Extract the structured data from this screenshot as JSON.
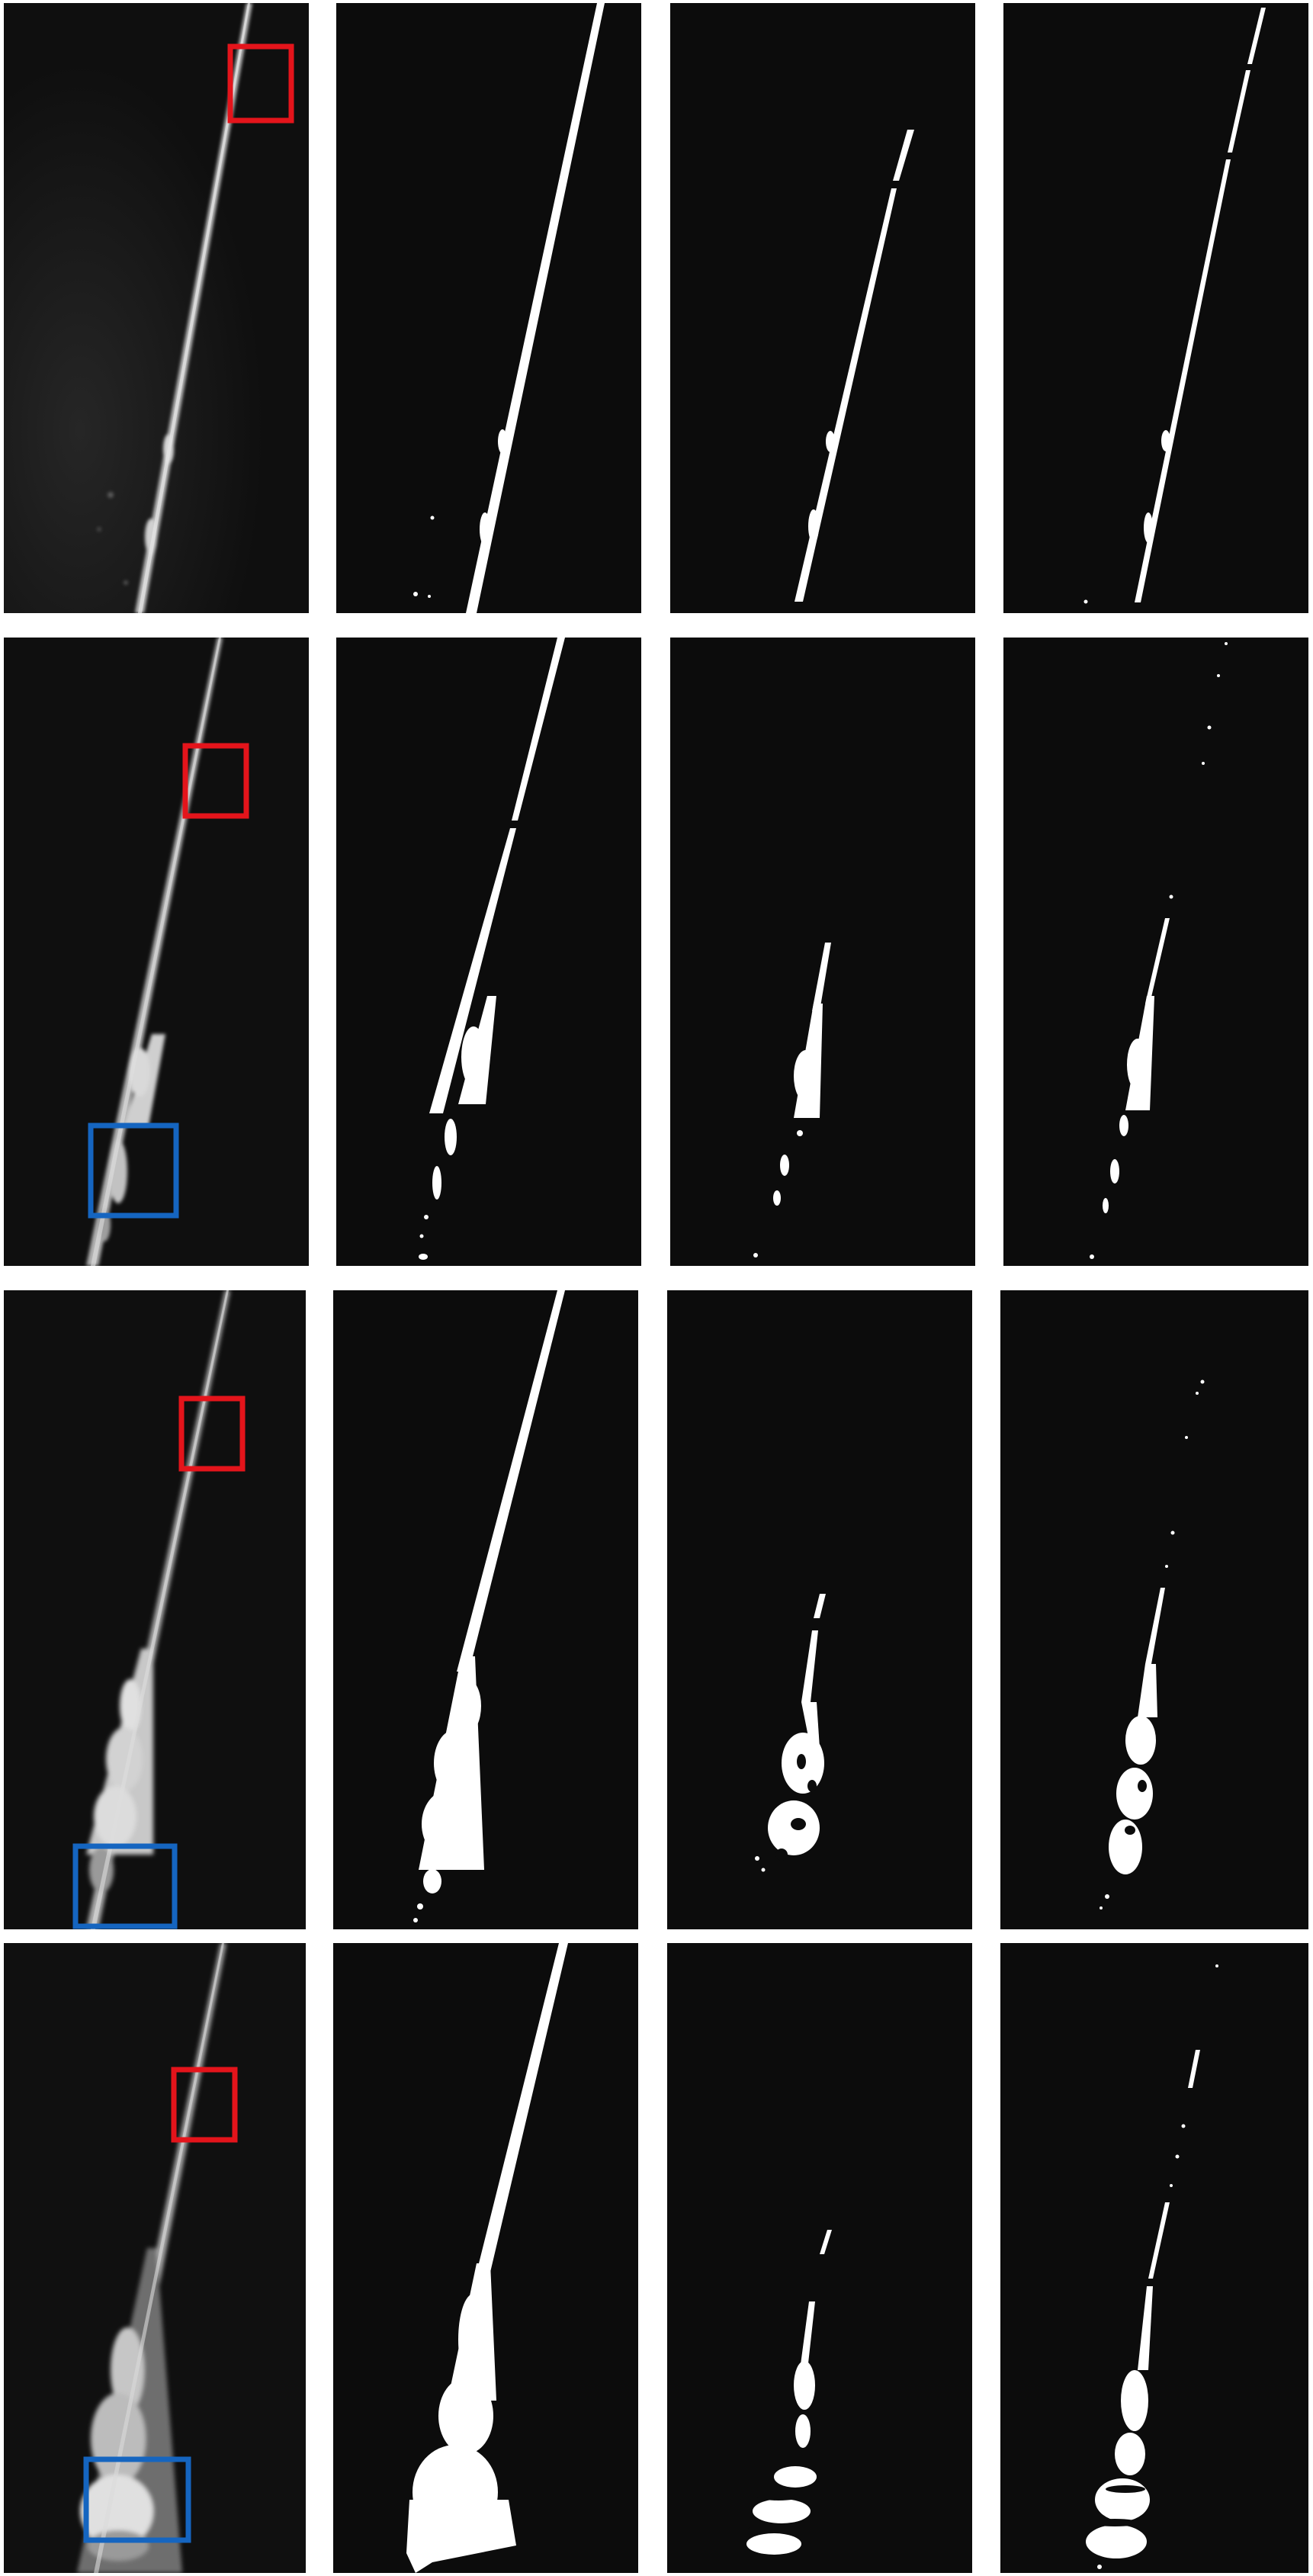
{
  "figure": {
    "rows": [
      {
        "row_index": 1,
        "panels": [
          {
            "kind": "raw",
            "has_red_box": true,
            "has_blue_box": false
          },
          {
            "kind": "mask"
          },
          {
            "kind": "mask"
          },
          {
            "kind": "mask"
          }
        ]
      },
      {
        "row_index": 2,
        "panels": [
          {
            "kind": "raw",
            "has_red_box": true,
            "has_blue_box": true
          },
          {
            "kind": "mask"
          },
          {
            "kind": "mask"
          },
          {
            "kind": "mask"
          }
        ]
      },
      {
        "row_index": 3,
        "panels": [
          {
            "kind": "raw",
            "has_red_box": true,
            "has_blue_box": true
          },
          {
            "kind": "mask"
          },
          {
            "kind": "mask"
          },
          {
            "kind": "mask"
          }
        ]
      },
      {
        "row_index": 4,
        "panels": [
          {
            "kind": "raw",
            "has_red_box": true,
            "has_blue_box": true
          },
          {
            "kind": "mask"
          },
          {
            "kind": "mask"
          },
          {
            "kind": "mask"
          }
        ]
      }
    ],
    "colors": {
      "background": "#0c0c0c",
      "mask_white": "#ffffff",
      "raw_streak": "#cfcfcf",
      "red_box": "#e4141b",
      "blue_box": "#1565c0",
      "separator": "#ffffff"
    }
  }
}
